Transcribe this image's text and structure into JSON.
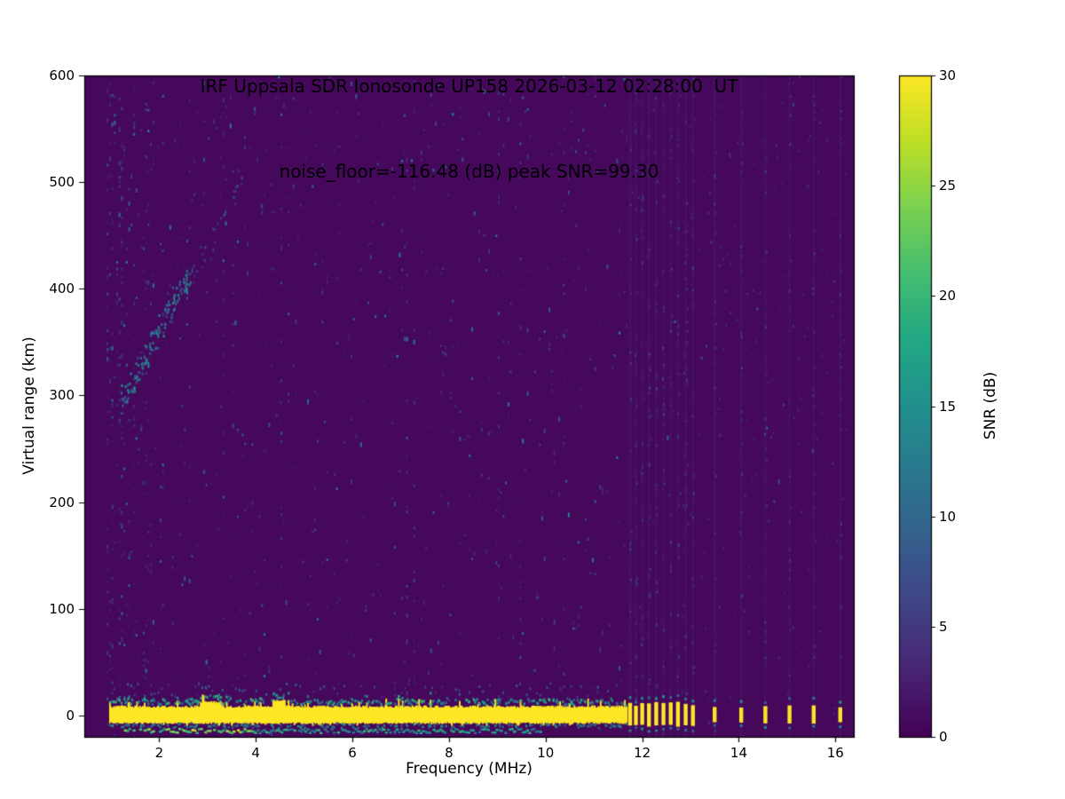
{
  "chart_data": {
    "type": "heatmap",
    "title": "IRF Uppsala SDR Ionosonde UP158 2026-03-12 02:28:00  UT",
    "subtitle": "noise_floor=-116.48 (dB) peak SNR=99.30",
    "xlabel": "Frequency (MHz)",
    "ylabel": "Virtual range (km)",
    "xlim": [
      0.45,
      16.38
    ],
    "ylim": [
      -20,
      600
    ],
    "xticks": [
      2,
      4,
      6,
      8,
      10,
      12,
      14,
      16
    ],
    "yticks": [
      0,
      100,
      200,
      300,
      400,
      500,
      600
    ],
    "colormap": "viridis",
    "background_snr_db": 0.6,
    "colorbar": {
      "label": "SNR (dB)",
      "min": 0,
      "max": 30,
      "ticks": [
        0,
        5,
        10,
        15,
        20,
        25,
        30
      ]
    },
    "features": {
      "data_freq_start_mhz": 0.95,
      "data_freq_end_mhz": 16.2,
      "ground_band": {
        "freq_start_mhz": 1.0,
        "freq_end_mhz": 11.68,
        "y_center_km": 0,
        "half_width_km": 7,
        "snr_db": 30
      },
      "sub_band": {
        "freq_start_mhz": 1.3,
        "freq_end_mhz": 9.9,
        "y_km": -14,
        "snr_db": 22
      },
      "discrete_bars_mhz": [
        11.75,
        11.87,
        12.0,
        12.14,
        12.29,
        12.44,
        12.59,
        12.74,
        12.9,
        13.05,
        13.5,
        14.05,
        14.55,
        15.05,
        15.55,
        16.1
      ],
      "echo_trace": {
        "snr_db": 12,
        "points_mhz_km": [
          [
            1.3,
            300
          ],
          [
            1.45,
            312
          ],
          [
            1.6,
            325
          ],
          [
            1.75,
            338
          ],
          [
            1.9,
            352
          ],
          [
            2.05,
            365
          ],
          [
            2.2,
            378
          ],
          [
            2.35,
            390
          ],
          [
            2.5,
            400
          ],
          [
            2.6,
            406
          ]
        ]
      },
      "faint_trace_points_mhz_km": [
        [
          2.75,
          418
        ],
        [
          2.95,
          432
        ],
        [
          3.15,
          448
        ],
        [
          3.35,
          466
        ],
        [
          3.55,
          486
        ],
        [
          3.7,
          505
        ]
      ],
      "noisy_columns_mhz": [
        1.05,
        1.25,
        1.5,
        1.75,
        3.35,
        4.55,
        7.15,
        7.3,
        9.05,
        9.5,
        10.4
      ]
    }
  }
}
